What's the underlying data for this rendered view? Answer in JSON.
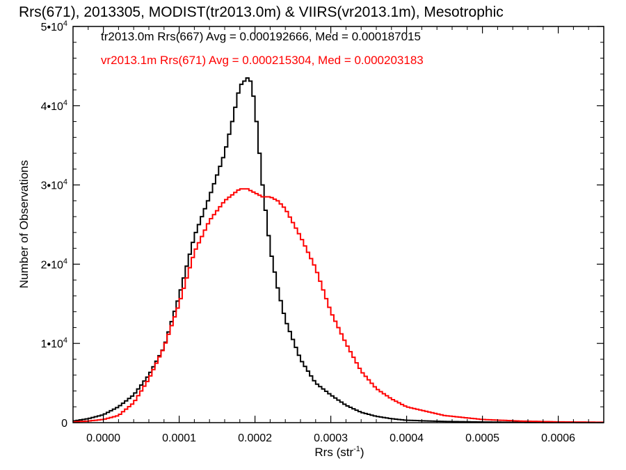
{
  "chart_data": {
    "type": "line",
    "title": "Rrs(671), 2013305, MODIST(tr2013.0m) & VIIRS(vr2013.1m), Mesotrophic",
    "xlabel": "Rrs (str",
    "xlabel_sup": "-1",
    "xlabel_close": ")",
    "ylabel": "Number of Observations",
    "xlim": [
      -4e-05,
      0.00066
    ],
    "ylim": [
      0,
      50000
    ],
    "x_ticks": [
      {
        "value": 0.0,
        "label": "0.0000"
      },
      {
        "value": 0.0001,
        "label": "0.0001"
      },
      {
        "value": 0.0002,
        "label": "0.0002"
      },
      {
        "value": 0.0003,
        "label": "0.0003"
      },
      {
        "value": 0.0004,
        "label": "0.0004"
      },
      {
        "value": 0.0005,
        "label": "0.0005"
      },
      {
        "value": 0.0006,
        "label": "0.0006"
      }
    ],
    "y_ticks": [
      {
        "value": 0,
        "base": "0",
        "exp": ""
      },
      {
        "value": 10000,
        "base": "1•10",
        "exp": "4"
      },
      {
        "value": 20000,
        "base": "2•10",
        "exp": "4"
      },
      {
        "value": 30000,
        "base": "3•10",
        "exp": "4"
      },
      {
        "value": 40000,
        "base": "4•10",
        "exp": "4"
      },
      {
        "value": 50000,
        "base": "5•10",
        "exp": "4"
      }
    ],
    "grid": false,
    "legend_position": "top-left",
    "series": [
      {
        "name": "tr2013.0m Rrs(667) Avg = 0.000192666, Med = 0.000187015",
        "color": "#000000",
        "x": [
          -4e-05,
          -2e-05,
          0.0,
          2e-05,
          4e-05,
          6e-05,
          8e-05,
          0.0001,
          0.00012,
          0.00014,
          0.00016,
          0.00017,
          0.00018,
          0.00019,
          0.000195,
          0.0002,
          0.00021,
          0.00022,
          0.00023,
          0.00024,
          0.00026,
          0.00028,
          0.0003,
          0.00032,
          0.00034,
          0.00036,
          0.00038,
          0.0004,
          0.00045,
          0.0005,
          0.00055,
          0.0006,
          0.00066
        ],
        "y": [
          200,
          500,
          1000,
          2000,
          3500,
          6000,
          9500,
          16000,
          23500,
          28500,
          34000,
          38000,
          42500,
          43500,
          43000,
          40000,
          30000,
          22000,
          17000,
          13000,
          8000,
          5000,
          3500,
          2200,
          1300,
          800,
          500,
          300,
          150,
          80,
          40,
          20,
          10
        ]
      },
      {
        "name": "vr2013.1m Rrs(671) Avg = 0.000215304, Med = 0.000203183",
        "color": "#ff0000",
        "x": [
          -4e-05,
          -2e-05,
          0.0,
          2e-05,
          4e-05,
          6e-05,
          8e-05,
          0.0001,
          0.00012,
          0.00014,
          0.00016,
          0.00018,
          0.00019,
          0.0002,
          0.00021,
          0.00022,
          0.00023,
          0.00024,
          0.00026,
          0.00028,
          0.0003,
          0.00032,
          0.00034,
          0.00036,
          0.00038,
          0.0004,
          0.00045,
          0.0005,
          0.00055,
          0.0006,
          0.00066
        ],
        "y": [
          100,
          200,
          400,
          900,
          2500,
          5500,
          9500,
          15000,
          21500,
          25500,
          28000,
          29500,
          29500,
          29000,
          28500,
          28500,
          28000,
          27000,
          23500,
          19500,
          14000,
          10000,
          6500,
          4300,
          3000,
          2000,
          900,
          400,
          200,
          100,
          50
        ]
      }
    ]
  }
}
